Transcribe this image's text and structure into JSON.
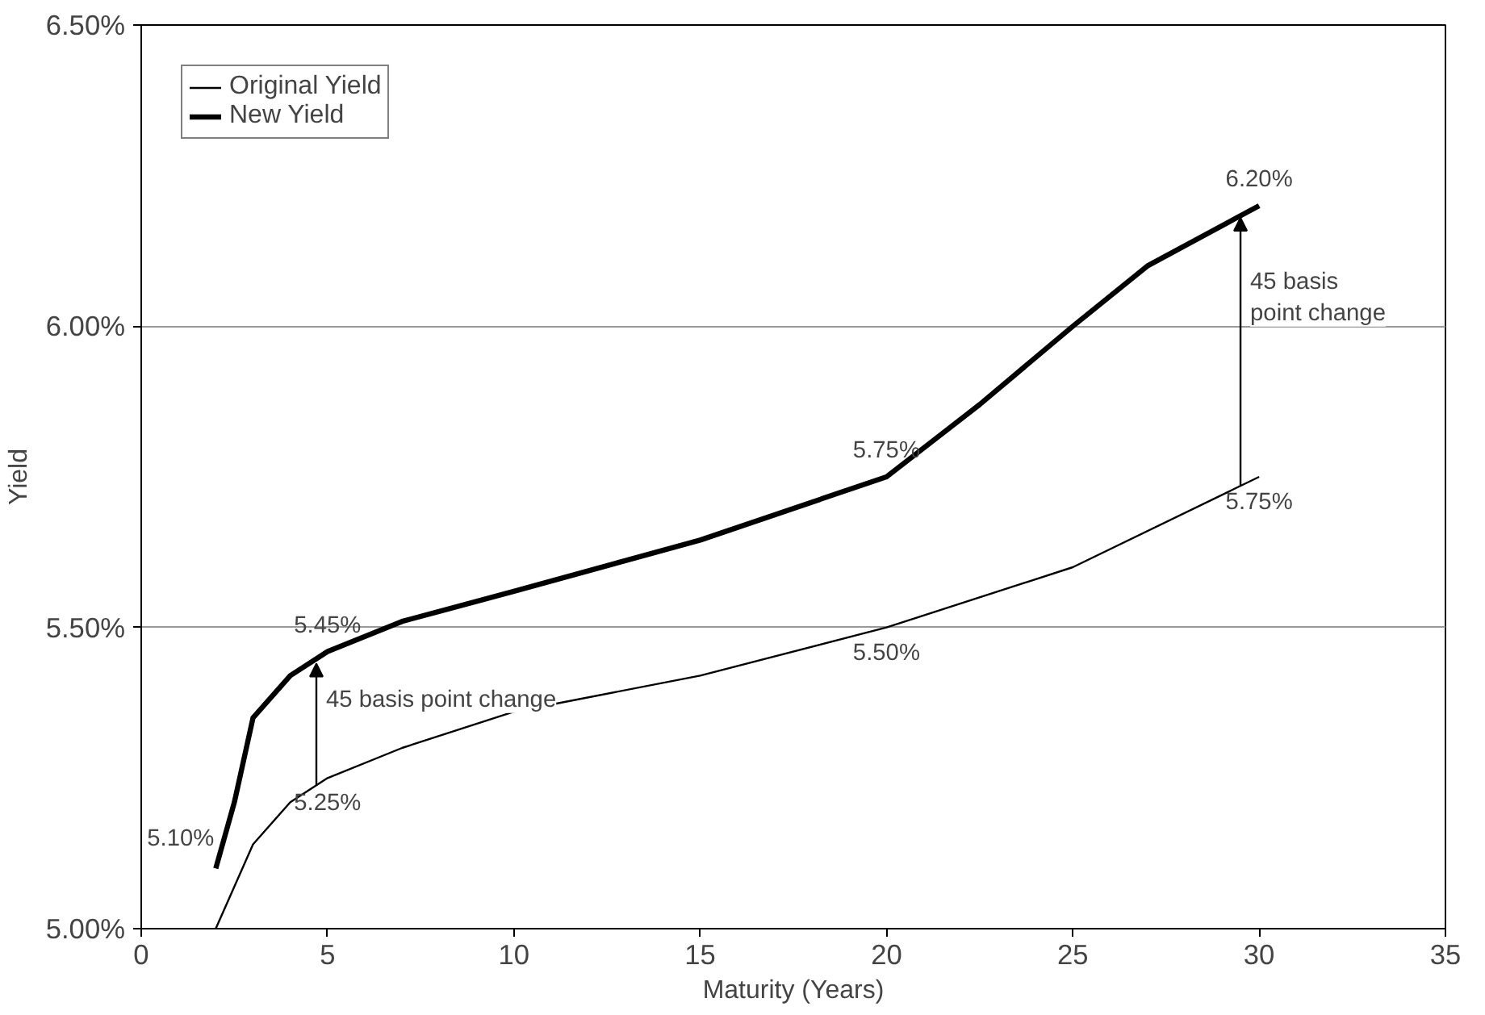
{
  "chart_data": {
    "type": "line",
    "xlabel": "Maturity (Years)",
    "ylabel": "Yield",
    "xlim": [
      0,
      35
    ],
    "xticks": [
      0,
      5,
      10,
      15,
      20,
      25,
      30,
      35
    ],
    "ylim": [
      5.0,
      6.5
    ],
    "yticks": [
      {
        "value": 5.0,
        "label": "5.00%"
      },
      {
        "value": 5.5,
        "label": "5.50%"
      },
      {
        "value": 6.0,
        "label": "6.00%"
      },
      {
        "value": 6.5,
        "label": "6.50%"
      }
    ],
    "grid": "y",
    "legend": "top left",
    "line_style": "solid",
    "marker": "none",
    "series": [
      {
        "name": "Original Yield",
        "color": "#000000",
        "x": [
          2,
          2.5,
          3,
          4,
          5,
          7,
          10,
          15,
          20,
          25,
          30
        ],
        "values": [
          5.0,
          5.07,
          5.14,
          5.21,
          5.25,
          5.3,
          5.36,
          5.42,
          5.5,
          5.6,
          5.75
        ]
      },
      {
        "name": "New Yield",
        "color": "#000000",
        "x": [
          2,
          2.5,
          3,
          4,
          5,
          7,
          10,
          15,
          20,
          22.5,
          25,
          27,
          30
        ],
        "values": [
          5.1,
          5.21,
          5.35,
          5.42,
          5.46,
          5.51,
          5.56,
          5.645,
          5.75,
          5.87,
          6.0,
          6.1,
          6.2
        ]
      }
    ],
    "annotations": [
      {
        "text": "5.10%",
        "x": 2,
        "y": 5.1
      },
      {
        "text": "5.45%",
        "x": 5,
        "y": 5.46
      },
      {
        "text": "5.75%",
        "x": 20,
        "y": 5.75
      },
      {
        "text": "6.20%",
        "x": 30,
        "y": 6.2
      },
      {
        "text": "5.25%",
        "x": 5,
        "y": 5.25
      },
      {
        "text": "5.50%",
        "x": 20,
        "y": 5.5
      },
      {
        "text": "5.75%",
        "x": 30,
        "y": 5.75
      },
      {
        "text": "45 basis point change",
        "x": 4.7,
        "y": 5.44
      },
      {
        "text": "45 basis\npoint change",
        "x": 29.5,
        "y": 6.18
      }
    ]
  }
}
